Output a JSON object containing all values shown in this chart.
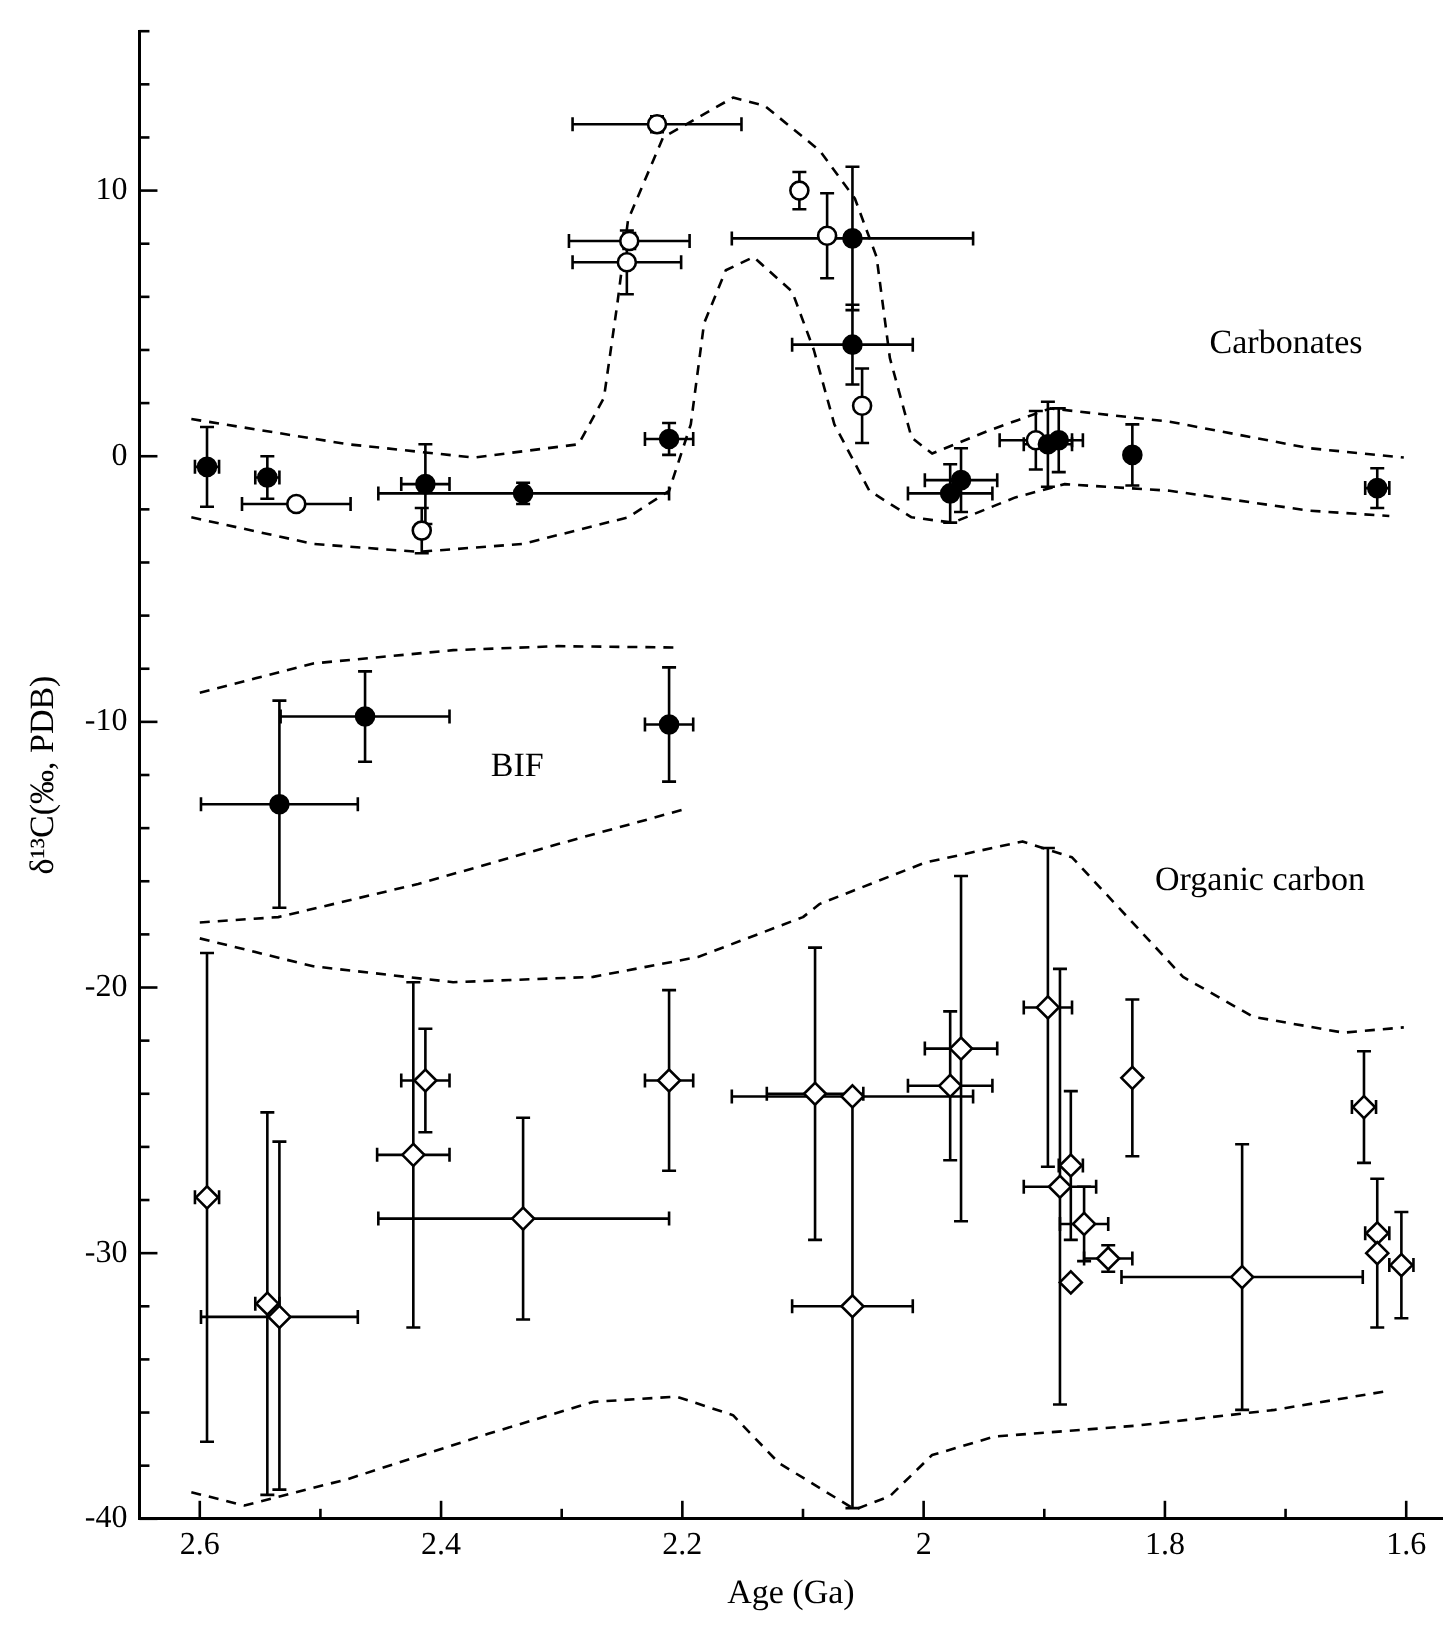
{
  "chart_data": {
    "type": "scatter",
    "xlabel": "Age (Ga)",
    "ylabel": "δ¹³C(‰, PDB)",
    "xlim": [
      2.65,
      1.57
    ],
    "ylim": [
      -40,
      16
    ],
    "xticks": [
      2.6,
      {
        "value": 2.5,
        "label": null
      },
      2.4,
      {
        "value": 2.3,
        "label": null
      },
      2.2,
      {
        "value": 2.1,
        "label": null
      },
      2,
      {
        "value": 1.9,
        "label": null
      },
      1.8,
      {
        "value": 1.7,
        "label": null
      },
      1.6
    ],
    "yticks": [
      -40,
      {
        "value": -38,
        "label": null
      },
      {
        "value": -36,
        "label": null
      },
      {
        "value": -34,
        "label": null
      },
      {
        "value": -32,
        "label": null
      },
      -30,
      {
        "value": -28,
        "label": null
      },
      {
        "value": -26,
        "label": null
      },
      {
        "value": -24,
        "label": null
      },
      {
        "value": -22,
        "label": null
      },
      -20,
      {
        "value": -18,
        "label": null
      },
      {
        "value": -16,
        "label": null
      },
      {
        "value": -14,
        "label": null
      },
      {
        "value": -12,
        "label": null
      },
      -10,
      {
        "value": -8,
        "label": null
      },
      {
        "value": -6,
        "label": null
      },
      {
        "value": -4,
        "label": null
      },
      {
        "value": -2,
        "label": null
      },
      0,
      {
        "value": 2,
        "label": null
      },
      {
        "value": 4,
        "label": null
      },
      {
        "value": 6,
        "label": null
      },
      {
        "value": 8,
        "label": null
      },
      10,
      {
        "value": 12,
        "label": null
      },
      {
        "value": 14,
        "label": null
      },
      {
        "value": 16,
        "label": null
      }
    ],
    "grid": false,
    "legend": false,
    "annotations": [
      "Carbonates",
      "BIF",
      "Organic carbon"
    ],
    "series": [
      {
        "marker": "circle",
        "color": "#000000",
        "x": [
          2.594,
          2.544,
          2.413,
          2.332,
          2.211,
          2.059,
          2.059,
          1.978,
          1.969,
          1.897,
          1.888,
          1.827,
          1.624
        ],
        "values": [
          -0.4,
          -0.8,
          -1.05,
          -1.4,
          0.65,
          8.2,
          4.2,
          -1.4,
          -0.9,
          0.45,
          0.6,
          0.05,
          -1.2
        ],
        "errors": [
          1.5,
          0.8,
          1.5,
          0.4,
          0.6,
          2.7,
          1.5,
          1.1,
          1.2,
          1.6,
          1.2,
          1.15,
          0.75
        ],
        "xerrors": [
          0.01,
          0.01,
          0.02,
          [
            2.211,
            2.452
          ],
          0.02,
          0.1,
          0.05,
          0.035,
          0.03,
          0.02,
          0.02,
          null,
          0.01
        ]
      },
      {
        "marker": "circle",
        "color": "#ffffff",
        "x": [
          2.221,
          2.244,
          2.246,
          2.52,
          2.416,
          2.103,
          2.08,
          2.051,
          1.907
        ],
        "values": [
          12.5,
          8.1,
          7.3,
          -1.8,
          -2.8,
          10.0,
          8.3,
          1.9,
          0.6
        ],
        "errors": [
          0.3,
          0.3,
          1.2,
          null,
          0.85,
          0.7,
          1.6,
          1.4,
          1.1
        ],
        "xerrors": [
          0.07,
          0.05,
          0.045,
          0.045,
          null,
          null,
          null,
          null,
          0.03
        ]
      },
      {
        "marker": "circle",
        "color": "#000000",
        "x": [
          2.534,
          2.463,
          2.211
        ],
        "values": [
          -13.1,
          -9.8,
          -10.1
        ],
        "errors": [
          3.9,
          1.7,
          2.15
        ],
        "xerrors": [
          0.065,
          0.07,
          0.02
        ]
      },
      {
        "marker": "diamond",
        "color": "#ffffff",
        "x": [
          2.594,
          2.544,
          2.534,
          2.423,
          2.413,
          2.332,
          2.211,
          2.09,
          2.059,
          2.059,
          1.978,
          1.969,
          1.897,
          1.887,
          1.878,
          1.878,
          1.867,
          1.847,
          1.827,
          1.736,
          1.635,
          1.624,
          1.624,
          1.604
        ],
        "values": [
          -27.9,
          -31.9,
          -32.4,
          -26.3,
          -23.5,
          -28.7,
          -23.5,
          -24.0,
          -24.1,
          -32.0,
          -23.7,
          -22.3,
          -20.75,
          -27.5,
          -26.7,
          -31.1,
          -28.9,
          -30.2,
          -23.4,
          -30.9,
          -24.5,
          -29.25,
          -30.0,
          -30.45
        ],
        "errors": [
          9.2,
          [
            -39.1,
            -24.7
          ],
          [
            -38.9,
            -25.8
          ],
          6.5,
          1.95,
          3.8,
          3.4,
          5.5,
          null,
          [
            -39.6,
            -24.1
          ],
          2.8,
          6.5,
          6,
          8.2,
          2.8,
          null,
          1.4,
          0.5,
          2.95,
          5,
          2.1,
          null,
          [
            -32.8,
            -27.2
          ],
          2
        ],
        "xerrors": [
          0.01,
          0.01,
          0.065,
          0.03,
          0.02,
          [
            2.211,
            2.452
          ],
          0.02,
          0.04,
          0.1,
          0.05,
          0.035,
          0.03,
          0.02,
          0.03,
          0.01,
          null,
          0.02,
          0.02,
          null,
          0.1,
          0.01,
          0.01,
          null,
          0.01
        ]
      },
      {
        "type": "line",
        "marker": "none",
        "line_style": "dashed",
        "color": "#000000",
        "x": [
          2.607,
          2.477,
          2.373,
          2.286,
          2.265,
          2.254,
          2.245,
          2.216,
          2.158,
          2.132,
          2.086,
          2.057,
          2.039,
          2.028,
          2.01,
          1.993,
          1.947,
          1.895,
          1.796,
          1.68,
          1.602
        ],
        "values": [
          1.4,
          0.45,
          -0.05,
          0.45,
          2.2,
          5.7,
          8.9,
          12.0,
          13.5,
          13.2,
          11.5,
          9.7,
          7.5,
          3.7,
          0.7,
          0.1,
          0.95,
          1.8,
          1.3,
          0.3,
          -0.05
        ]
      },
      {
        "type": "line",
        "marker": "none",
        "line_style": "dashed",
        "color": "#000000",
        "x": [
          2.607,
          2.506,
          2.419,
          2.332,
          2.245,
          2.211,
          2.193,
          2.182,
          2.164,
          2.141,
          2.109,
          2.091,
          2.074,
          2.045,
          2.01,
          1.976,
          1.924,
          1.883,
          1.796,
          1.68,
          1.614
        ],
        "values": [
          -2.3,
          -3.3,
          -3.6,
          -3.3,
          -2.3,
          -1.3,
          1.2,
          5.0,
          7.0,
          7.5,
          6.2,
          4.0,
          1.2,
          -1.3,
          -2.3,
          -2.5,
          -1.55,
          -1.05,
          -1.3,
          -2.05,
          -2.25
        ]
      },
      {
        "type": "line",
        "marker": "none",
        "line_style": "dashed",
        "color": "#000000",
        "x": [
          2.6,
          2.506,
          2.39,
          2.303,
          2.206
        ],
        "values": [
          -8.9,
          -7.8,
          -7.3,
          -7.15,
          -7.2
        ]
      },
      {
        "type": "line",
        "marker": "none",
        "line_style": "dashed",
        "color": "#000000",
        "x": [
          2.6,
          2.535,
          2.419,
          2.303,
          2.199
        ],
        "values": [
          -17.55,
          -17.35,
          -16.1,
          -14.6,
          -13.3
        ]
      },
      {
        "type": "line",
        "marker": "none",
        "line_style": "dashed",
        "color": "#000000",
        "x": [
          2.6,
          2.506,
          2.39,
          2.274,
          2.187,
          2.1,
          2.086,
          1.999,
          1.918,
          1.877,
          1.831,
          1.785,
          1.727,
          1.652,
          1.602
        ],
        "values": [
          -18.15,
          -19.2,
          -19.8,
          -19.6,
          -18.85,
          -17.35,
          -16.85,
          -15.3,
          -14.5,
          -15.1,
          -17.35,
          -19.6,
          -21.1,
          -21.7,
          -21.5
        ]
      },
      {
        "type": "line",
        "marker": "none",
        "line_style": "dashed",
        "color": "#000000",
        "x": [
          2.607,
          2.563,
          2.477,
          2.361,
          2.274,
          2.205,
          2.158,
          2.12,
          2.057,
          2.028,
          1.993,
          1.941,
          1.825,
          1.709,
          1.617
        ],
        "values": [
          -39.0,
          -39.5,
          -38.5,
          -36.8,
          -35.6,
          -35.4,
          -36.1,
          -37.9,
          -39.65,
          -39.15,
          -37.6,
          -36.9,
          -36.5,
          -35.9,
          -35.2
        ]
      }
    ]
  }
}
